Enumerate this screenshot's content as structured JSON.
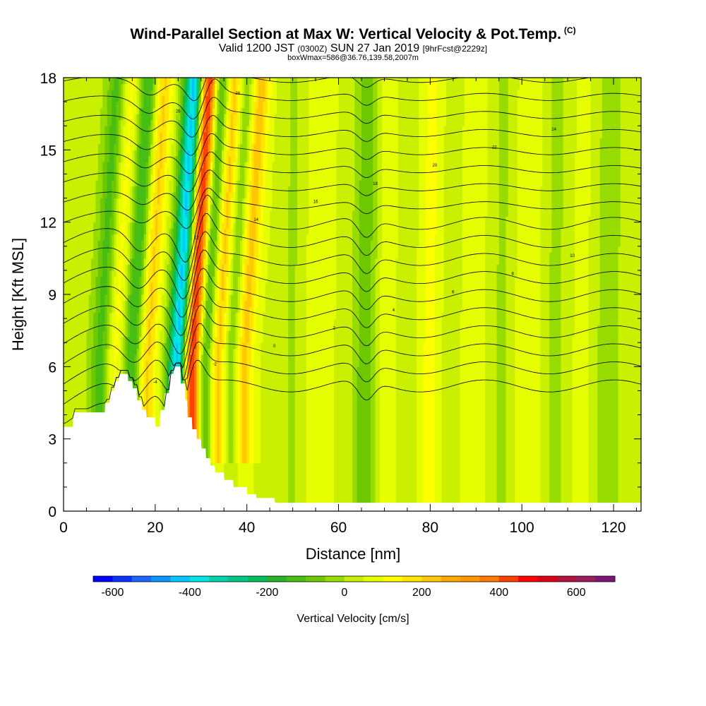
{
  "title": {
    "main": "Wind-Parallel Section at Max W: Vertical Velocity & Pot.Temp.",
    "copyright": "(C)",
    "valid_prefix": "Valid 1200 JST",
    "valid_utc": "(0300Z)",
    "valid_date": "SUN 27 Jan 2019",
    "forecast": "[9hrFcst@2229z]",
    "box_info": "boxWmax=586@36.76,139.58,2007m"
  },
  "chart_data": {
    "type": "heatmap",
    "xlabel": "Distance [nm]",
    "ylabel": "Height [Kft MSL]",
    "xlim": [
      0,
      126
    ],
    "ylim": [
      0,
      18
    ],
    "x_ticks": [
      0,
      20,
      40,
      60,
      80,
      100,
      120
    ],
    "y_ticks": [
      0,
      3,
      6,
      9,
      12,
      15,
      18
    ],
    "colorbar": {
      "label": "Vertical Velocity [cm/s]",
      "ticks": [
        -600,
        -400,
        -200,
        0,
        200,
        400,
        600
      ],
      "levels": [
        -650,
        -600,
        -550,
        -500,
        -450,
        -400,
        -350,
        -300,
        -250,
        -200,
        -150,
        -100,
        -50,
        0,
        50,
        100,
        150,
        200,
        250,
        300,
        350,
        400,
        450,
        500,
        550,
        600,
        650,
        700
      ],
      "colors": [
        "#0000ff",
        "#0a32ff",
        "#1e64ff",
        "#0a96ff",
        "#00c8ff",
        "#00e6e6",
        "#00d2aa",
        "#00c882",
        "#00be5a",
        "#28b428",
        "#46be14",
        "#6ec800",
        "#96dc00",
        "#c8f000",
        "#e6ff00",
        "#ffff00",
        "#ffe600",
        "#ffc800",
        "#ffa800",
        "#ff9600",
        "#ff7800",
        "#ff4000",
        "#ff0000",
        "#dc0014",
        "#b4143c",
        "#961e5a",
        "#7d1478"
      ]
    },
    "updrafts_cm_s": [
      {
        "distance_nm": 11,
        "value": 120
      },
      {
        "distance_nm": 18,
        "value": 210
      },
      {
        "distance_nm": 28,
        "value": 586
      },
      {
        "distance_nm": 33.5,
        "value": 260
      },
      {
        "distance_nm": 39,
        "value": 230
      },
      {
        "distance_nm": 45,
        "value": 30
      },
      {
        "distance_nm": 55,
        "value": 80
      },
      {
        "distance_nm": 62,
        "value": 40
      },
      {
        "distance_nm": 70,
        "value": 120
      },
      {
        "distance_nm": 80,
        "value": 120
      },
      {
        "distance_nm": 89,
        "value": 90
      },
      {
        "distance_nm": 101,
        "value": 100
      },
      {
        "distance_nm": 113,
        "value": 60
      }
    ],
    "downdrafts_cm_s": [
      {
        "distance_nm": 8,
        "value": -150
      },
      {
        "distance_nm": 15,
        "value": -200
      },
      {
        "distance_nm": 25,
        "value": -500
      },
      {
        "distance_nm": 30.5,
        "value": -300
      },
      {
        "distance_nm": 36.5,
        "value": -160
      },
      {
        "distance_nm": 50,
        "value": -40
      },
      {
        "distance_nm": 66,
        "value": -150
      },
      {
        "distance_nm": 74,
        "value": -40
      },
      {
        "distance_nm": 84,
        "value": -40
      },
      {
        "distance_nm": 96,
        "value": -40
      },
      {
        "distance_nm": 107,
        "value": -40
      },
      {
        "distance_nm": 118,
        "value": -50
      }
    ],
    "potential_temperature_isentropes_C": [
      -4,
      -2,
      0,
      2,
      4,
      6,
      8,
      10,
      12,
      14,
      16,
      18,
      20,
      22,
      24,
      26,
      28,
      30
    ]
  }
}
